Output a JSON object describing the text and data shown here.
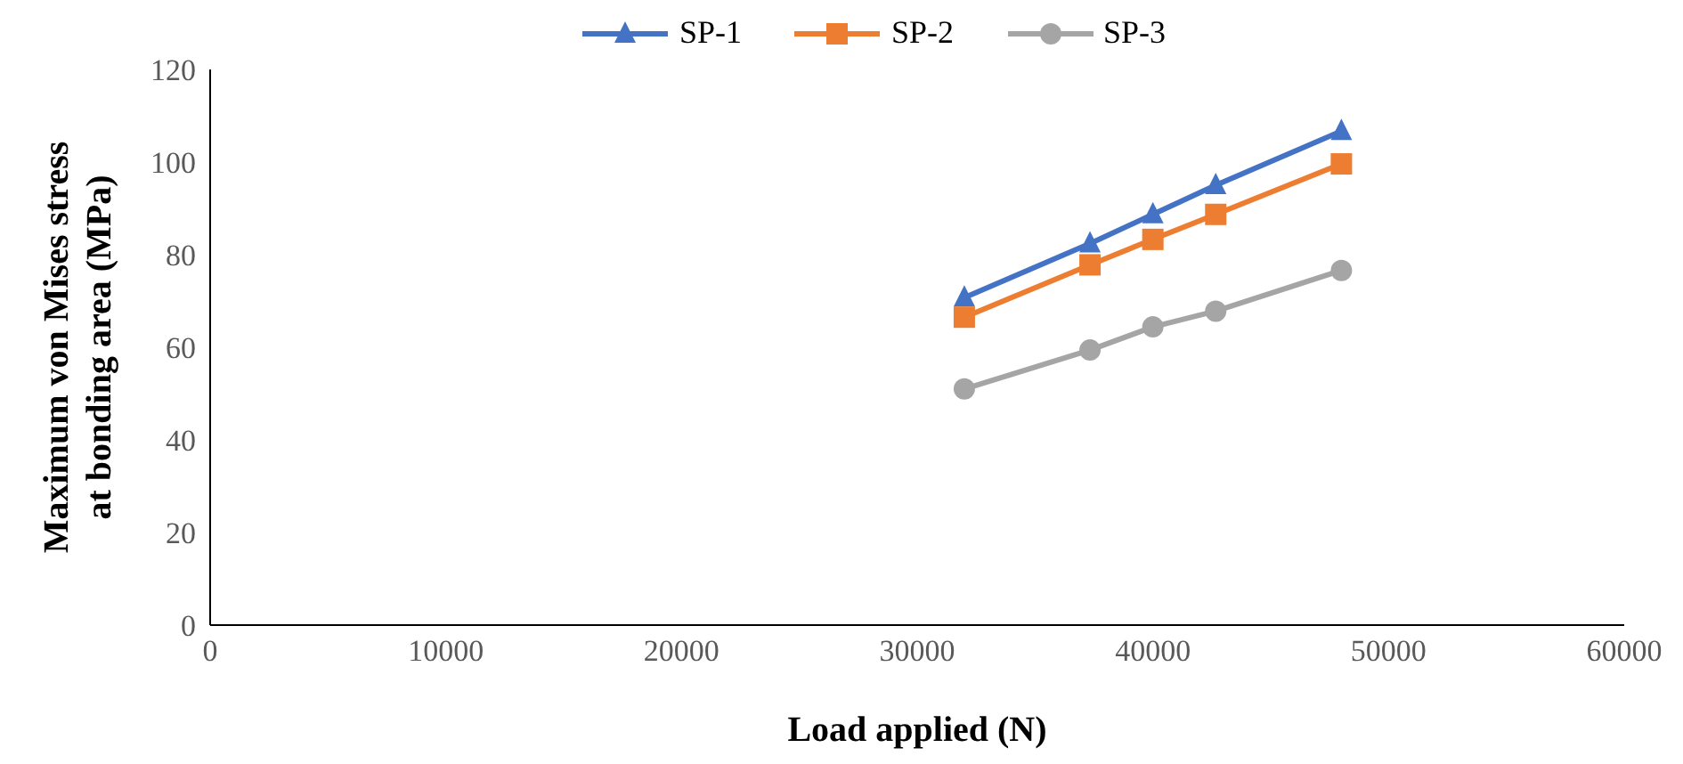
{
  "chart_data": {
    "type": "line",
    "xlabel": "Load applied (N)",
    "ylabel": "Maximum von Mises stress at bonding area (MPa)",
    "x": [
      32000,
      37333,
      40000,
      42667,
      48000
    ],
    "series": [
      {
        "name": "SP-1",
        "color": "#4472c4",
        "marker": "triangle",
        "values": [
          70.7,
          82.4,
          88.7,
          95,
          106.7
        ]
      },
      {
        "name": "SP-2",
        "color": "#ed7d31",
        "marker": "square",
        "values": [
          66.5,
          77.8,
          83.3,
          88.7,
          99.6
        ]
      },
      {
        "name": "SP-3",
        "color": "#a5a5a5",
        "marker": "circle",
        "values": [
          51,
          59.4,
          64.4,
          67.8,
          76.6
        ]
      }
    ],
    "xlim": [
      0,
      60000
    ],
    "xticks": [
      0,
      10000,
      20000,
      30000,
      40000,
      50000,
      60000
    ],
    "ylim": [
      0,
      120
    ],
    "yticks": [
      0,
      20,
      40,
      60,
      80,
      100,
      120
    ],
    "grid": false,
    "legend": "top"
  }
}
